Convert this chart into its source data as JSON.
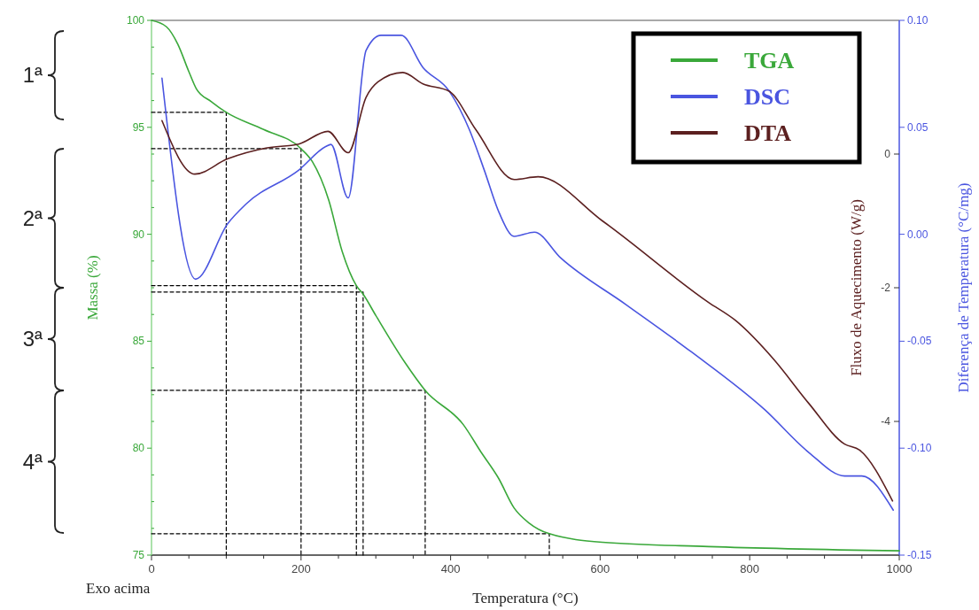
{
  "chart_data": {
    "type": "line",
    "xlabel": "Temperatura (°C)",
    "ylabel": "Massa (%)",
    "y2label": "Fluxo de Aquecimento (W/g)",
    "y3label": "Diferença de Temperatura (°C/mg)",
    "xlim": [
      0,
      1000
    ],
    "xticks": [
      0,
      {
        "value": 50,
        "label": null
      },
      {
        "value": 100,
        "label": null
      },
      {
        "value": 150,
        "label": null
      },
      200,
      {
        "value": 250,
        "label": null
      },
      {
        "value": 300,
        "label": null
      },
      {
        "value": 350,
        "label": null
      },
      400,
      {
        "value": 450,
        "label": null
      },
      {
        "value": 500,
        "label": null
      },
      {
        "value": 550,
        "label": null
      },
      600,
      {
        "value": 650,
        "label": null
      },
      {
        "value": 700,
        "label": null
      },
      {
        "value": 750,
        "label": null
      },
      800,
      {
        "value": 850,
        "label": null
      },
      {
        "value": 900,
        "label": null
      },
      {
        "value": 950,
        "label": null
      },
      1000
    ],
    "ylim": [
      75,
      100
    ],
    "yticks": [
      75,
      {
        "value": 76.25,
        "label": null
      },
      {
        "value": 77.5,
        "label": null
      },
      {
        "value": 78.75,
        "label": null
      },
      80,
      {
        "value": 81.25,
        "label": null
      },
      {
        "value": 82.5,
        "label": null
      },
      {
        "value": 83.75,
        "label": null
      },
      85,
      {
        "value": 86.25,
        "label": null
      },
      {
        "value": 87.5,
        "label": null
      },
      {
        "value": 88.75,
        "label": null
      },
      90,
      {
        "value": 91.25,
        "label": null
      },
      {
        "value": 92.5,
        "label": null
      },
      {
        "value": 93.75,
        "label": null
      },
      95,
      {
        "value": 96.25,
        "label": null
      },
      {
        "value": 97.5,
        "label": null
      },
      {
        "value": 98.75,
        "label": null
      },
      100
    ],
    "y2lim": [
      -6,
      2
    ],
    "y2ticks": [
      -4,
      -2,
      0
    ],
    "y3lim": [
      -0.15,
      0.1
    ],
    "y3ticks": [
      -0.15,
      {
        "value": -0.1,
        "label": "-0.10"
      },
      -0.05,
      {
        "value": 0,
        "label": "0.00"
      },
      0.05,
      {
        "value": 0.1,
        "label": "0.10"
      }
    ],
    "grid": false,
    "legend": "top right",
    "marker": "none",
    "series": [
      {
        "name": "TGA",
        "color": "#3aa83a",
        "line_style": "solid",
        "x": [
          0,
          20,
          35,
          50,
          60,
          80,
          100,
          150,
          200,
          215,
          237,
          255,
          274,
          283,
          300,
          339,
          366,
          417,
          441,
          464,
          485,
          505,
          532,
          603,
          745,
          1000
        ],
        "values": [
          100,
          99.7,
          98.9,
          97.6,
          96.8,
          96.2,
          95.7,
          94.9,
          94.0,
          93.4,
          91.6,
          89.2,
          87.6,
          87.2,
          86.2,
          84.0,
          82.7,
          81.1,
          79.8,
          78.6,
          77.2,
          76.5,
          76.0,
          75.6,
          75.4,
          75.2
        ]
      },
      {
        "name": "DSC",
        "color": "#4a55e0",
        "axis": "y3",
        "line_style": "solid",
        "x": [
          14,
          59,
          102,
          126,
          197,
          233,
          240,
          263,
          287,
          307,
          334,
          363,
          398,
          425,
          445,
          465,
          485,
          512,
          547,
          635,
          722,
          820,
          879,
          927,
          950,
          992
        ],
        "values": [
          0.073,
          -0.021,
          0.005,
          0.014,
          0.03,
          0.041,
          0.042,
          0.017,
          0.086,
          0.093,
          0.093,
          0.078,
          0.067,
          0.049,
          0.03,
          0.01,
          -0.001,
          0.001,
          -0.011,
          -0.033,
          -0.055,
          -0.082,
          -0.102,
          -0.113,
          -0.113,
          -0.129
        ]
      },
      {
        "name": "DTA",
        "color": "#5c2020",
        "axis": "y2",
        "line_style": "solid",
        "x": [
          14,
          58,
          102,
          153,
          197,
          236,
          263,
          287,
          303,
          336,
          363,
          398,
          434,
          485,
          517,
          603,
          745,
          781,
          832,
          879,
          927,
          947,
          991
        ],
        "values": [
          0.5,
          -0.3,
          -0.07,
          0.09,
          0.15,
          0.34,
          0.02,
          0.85,
          1.08,
          1.22,
          1.05,
          0.94,
          0.36,
          -0.38,
          -0.34,
          -1.0,
          -2.22,
          -2.49,
          -3.07,
          -3.73,
          -4.34,
          -4.43,
          -5.19
        ]
      },
      {
        "color": "#000000",
        "line_style": "dashed",
        "x": [
          0,
          100,
          100
        ],
        "values": [
          95.7,
          95.7,
          75
        ]
      },
      {
        "color": "#000000",
        "line_style": "dashed",
        "x": [
          0,
          200,
          200
        ],
        "values": [
          94.0,
          94.0,
          75
        ]
      },
      {
        "color": "#000000",
        "line_style": "dashed",
        "x": [
          0,
          274,
          274
        ],
        "values": [
          87.6,
          87.6,
          75
        ]
      },
      {
        "color": "#000000",
        "line_style": "dashed",
        "x": [
          0,
          283,
          283
        ],
        "values": [
          87.3,
          87.3,
          75
        ]
      },
      {
        "color": "#000000",
        "line_style": "dashed",
        "x": [
          0,
          366,
          366
        ],
        "values": [
          82.7,
          82.7,
          75
        ]
      },
      {
        "color": "#000000",
        "line_style": "dashed",
        "x": [
          0,
          532,
          532
        ],
        "values": [
          76.0,
          76.0,
          75
        ]
      }
    ],
    "annotations": [
      "1ª",
      "2ª",
      "3ª",
      "4ª",
      "Exo acima"
    ]
  }
}
